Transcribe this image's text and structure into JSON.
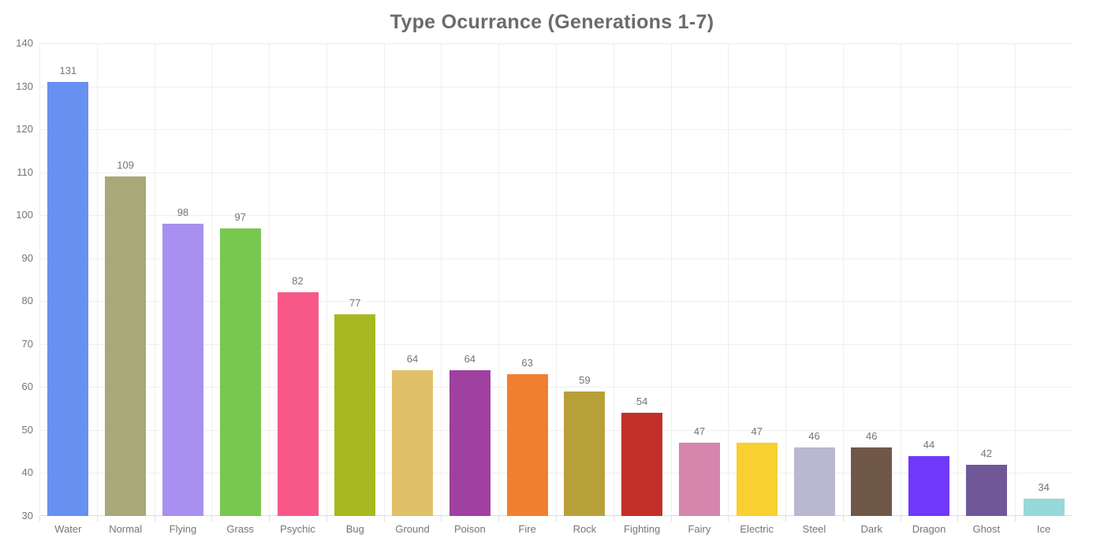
{
  "page": {
    "background": "#ffffff"
  },
  "chart_data": {
    "type": "bar",
    "title": "Type Ocurrance (Generations 1-7)",
    "categories": [
      "Water",
      "Normal",
      "Flying",
      "Grass",
      "Psychic",
      "Bug",
      "Ground",
      "Poison",
      "Fire",
      "Rock",
      "Fighting",
      "Fairy",
      "Electric",
      "Steel",
      "Dark",
      "Dragon",
      "Ghost",
      "Ice"
    ],
    "values": [
      131,
      109,
      98,
      97,
      82,
      77,
      64,
      64,
      63,
      59,
      54,
      47,
      47,
      46,
      46,
      44,
      42,
      34
    ],
    "bar_colors": [
      "#6890F0",
      "#A8A878",
      "#A890F0",
      "#78C850",
      "#F85888",
      "#A8B820",
      "#E0C068",
      "#A040A0",
      "#F08030",
      "#B8A038",
      "#C03028",
      "#D685AD",
      "#F8D030",
      "#B8B8D0",
      "#705848",
      "#7038F8",
      "#705898",
      "#98D8D8"
    ],
    "xlabel": "",
    "ylabel": "",
    "ylim": [
      30,
      140
    ],
    "yticks": [
      30,
      40,
      50,
      60,
      70,
      80,
      90,
      100,
      110,
      120,
      130,
      140
    ],
    "grid": true,
    "value_labels_shown": true,
    "legend": "none",
    "title_color": "#6b6b6b",
    "tick_label_color": "#757575",
    "gridline_color": "#efefef",
    "axis_line_color": "#dedede"
  }
}
